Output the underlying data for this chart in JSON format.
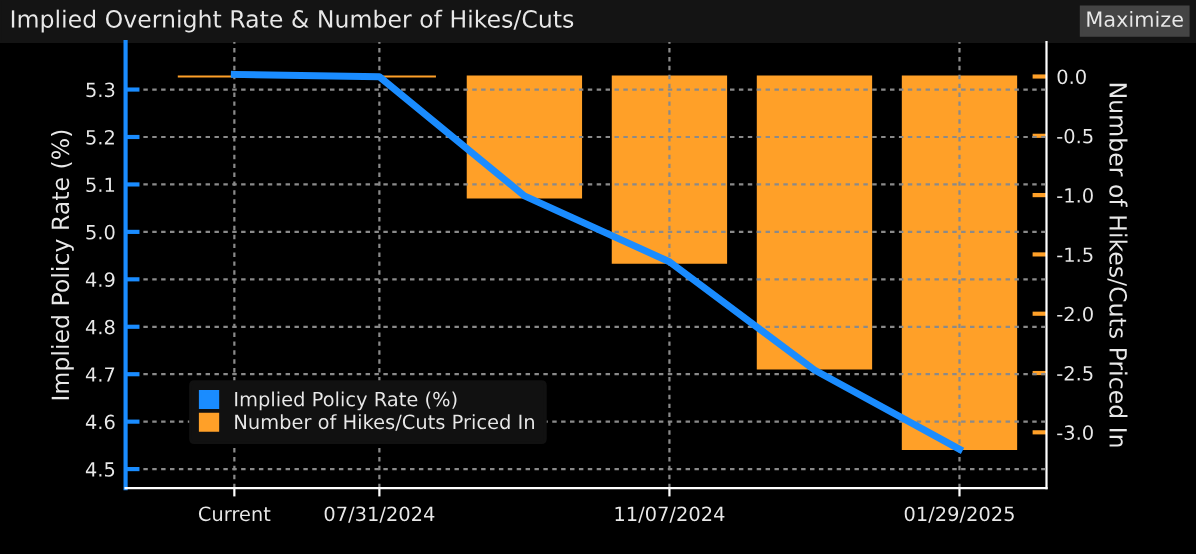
{
  "chart_data": {
    "type": "bar",
    "title": "Implied Overnight Rate & Number of Hikes/Cuts",
    "categories": [
      "Current",
      "07/31/2024",
      null,
      "11/07/2024",
      null,
      "01/29/2025"
    ],
    "series": [
      {
        "name": "Implied Policy Rate (%)",
        "type": "line",
        "color": "#1a8cff",
        "values": [
          5.332,
          5.327,
          5.076,
          4.937,
          4.709,
          4.542
        ]
      },
      {
        "name": "Number of Hikes/Cuts Priced In",
        "axis": "y2",
        "color": "#ffa028",
        "values": [
          0,
          0,
          -1.02,
          -1.57,
          -2.46,
          -3.14
        ]
      }
    ],
    "ylabel": "Implied Policy Rate (%)",
    "y2label": "Number of Hikes/Cuts Priced In",
    "ylim": [
      4.46,
      5.4
    ],
    "yticks": [
      4.5,
      4.6,
      4.7,
      4.8,
      4.9,
      {
        "value": 5,
        "label": "5.0"
      },
      5.1,
      5.2,
      5.3
    ],
    "y2lim": [
      -3.47,
      0.29
    ],
    "y2ticks": [
      {
        "value": -3,
        "label": "-3.0"
      },
      -2.5,
      {
        "value": -2,
        "label": "-2.0"
      },
      -1.5,
      {
        "value": -1,
        "label": "-1.0"
      },
      -0.5,
      {
        "value": 0,
        "label": "0.0"
      }
    ],
    "grid": true,
    "legend": "bottom left",
    "marker": "none",
    "line_style": "solid",
    "annotations": [
      "Maximize"
    ]
  }
}
